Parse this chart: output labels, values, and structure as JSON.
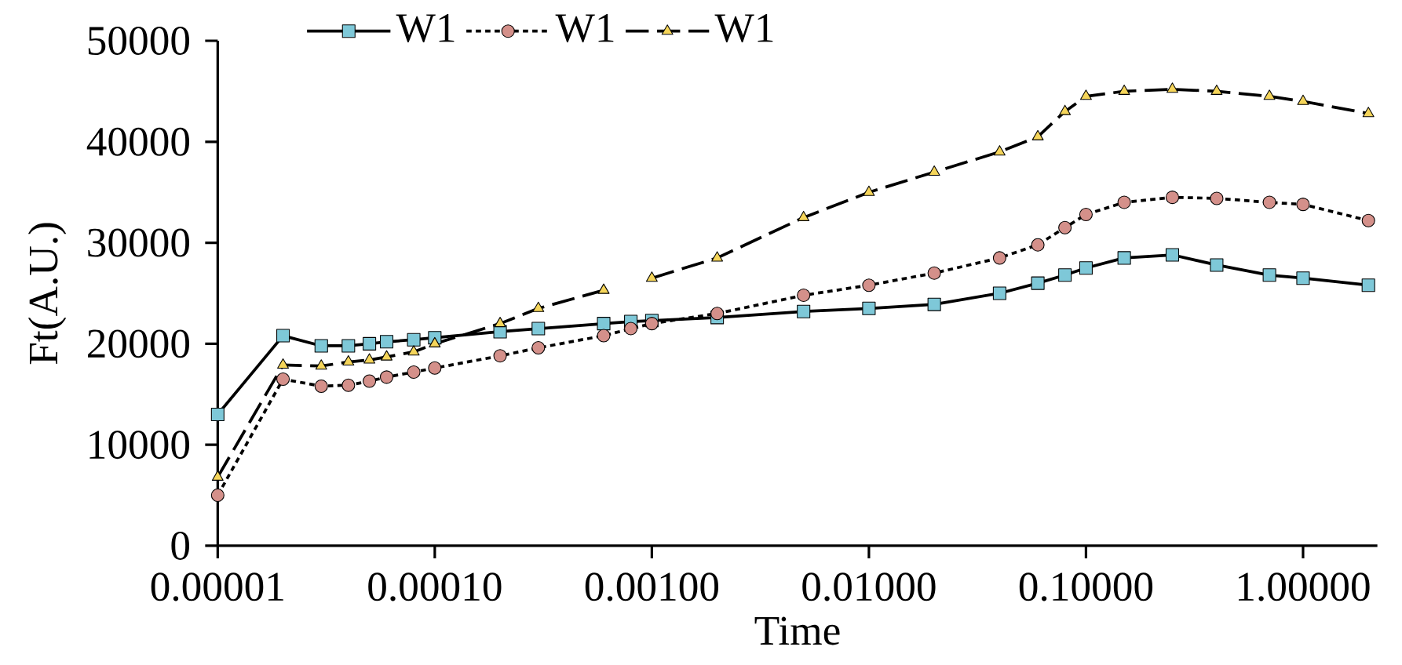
{
  "chart_data": {
    "type": "line",
    "xlabel": "Time",
    "ylabel": "Ft(A.U.)",
    "x": [
      1e-05,
      2e-05,
      3e-05,
      4e-05,
      5e-05,
      6e-05,
      8e-05,
      0.0001,
      0.0002,
      0.0003,
      0.0006,
      0.0008,
      0.001,
      0.002,
      0.005,
      0.01,
      0.02,
      0.04,
      0.06,
      0.08,
      0.1,
      0.15,
      0.25,
      0.4,
      0.7,
      1,
      2
    ],
    "series": [
      {
        "name": "W1",
        "color": "#7ec8d8",
        "marker": "square",
        "line_style": "solid",
        "values": [
          13000,
          20800,
          19800,
          19800,
          20000,
          20200,
          20400,
          20600,
          21200,
          21500,
          22000,
          22200,
          22300,
          22600,
          23200,
          23500,
          23900,
          25000,
          26000,
          26800,
          27500,
          28500,
          28800,
          27800,
          26800,
          26500,
          25800
        ]
      },
      {
        "name": "W1",
        "color": "#d4908a",
        "marker": "circle",
        "line_style": "dotted",
        "values": [
          5000,
          16500,
          15800,
          15900,
          16300,
          16700,
          17200,
          17600,
          18800,
          19600,
          20800,
          21500,
          22000,
          23000,
          24800,
          25800,
          27000,
          28500,
          29800,
          31500,
          32800,
          34000,
          34500,
          34400,
          34000,
          33800,
          32200
        ]
      },
      {
        "name": "W1",
        "color": "#f5d55a",
        "marker": "triangle",
        "line_style": "dashed",
        "values": [
          6800,
          17900,
          17800,
          18200,
          18400,
          18700,
          19200,
          20000,
          22000,
          23500,
          25300,
          null,
          26500,
          28500,
          32500,
          35000,
          37000,
          39000,
          40500,
          43000,
          44500,
          45000,
          45200,
          45000,
          44500,
          44000,
          42800
        ]
      }
    ],
    "xlim": [
      1e-05,
      2.2
    ],
    "ylim": [
      0,
      50000
    ],
    "log": "x",
    "xticks": [
      {
        "value": 1e-05,
        "label": "0.00001"
      },
      {
        "value": 0.0001,
        "label": "0.00010"
      },
      {
        "value": 0.001,
        "label": "0.00100"
      },
      {
        "value": 0.01,
        "label": "0.01000"
      },
      {
        "value": 0.1,
        "label": "0.10000"
      },
      {
        "value": 1,
        "label": "1.00000"
      }
    ],
    "yticks": [
      0,
      10000,
      20000,
      30000,
      40000,
      50000
    ],
    "grid": false,
    "legend": "top"
  }
}
